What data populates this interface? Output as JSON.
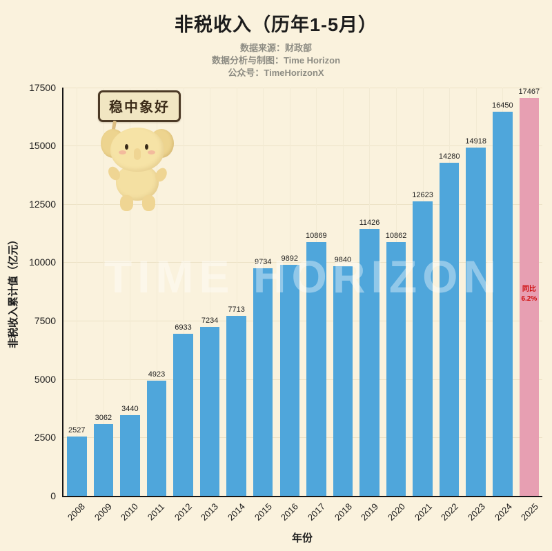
{
  "title": "非税收入（历年1-5月）",
  "subtitle": {
    "source": "数据来源：财政部",
    "credit": "数据分析与制图：Time Horizon",
    "account": "公众号：TimeHorizonX"
  },
  "watermark": "TIME HORIZON",
  "mascot": {
    "sign_text": "稳中象好"
  },
  "chart_data": {
    "type": "bar",
    "title": "非税收入（历年1-5月）",
    "xlabel": "年份",
    "ylabel": "非税收入累计值（亿元）",
    "categories": [
      "2008",
      "2009",
      "2010",
      "2011",
      "2012",
      "2013",
      "2014",
      "2015",
      "2016",
      "2017",
      "2018",
      "2019",
      "2020",
      "2021",
      "2022",
      "2023",
      "2024",
      "2025"
    ],
    "values": [
      2527,
      3062,
      3440,
      4923,
      6933,
      7234,
      7713,
      9734,
      9892,
      10869,
      9840,
      11426,
      10862,
      12623,
      14280,
      14918,
      16450,
      17467
    ],
    "ylim": [
      0,
      17500
    ],
    "yticks": [
      0,
      2500,
      5000,
      7500,
      10000,
      12500,
      15000,
      17500
    ],
    "grid": true,
    "legend": "none",
    "bar_color": "#4fa6db",
    "highlight_color": "#e79fb2",
    "highlight_index": 17,
    "annotation": {
      "line1": "同比",
      "line2": "6.2%",
      "color": "#cf0d0d"
    },
    "background_color": "#faf2dd"
  }
}
